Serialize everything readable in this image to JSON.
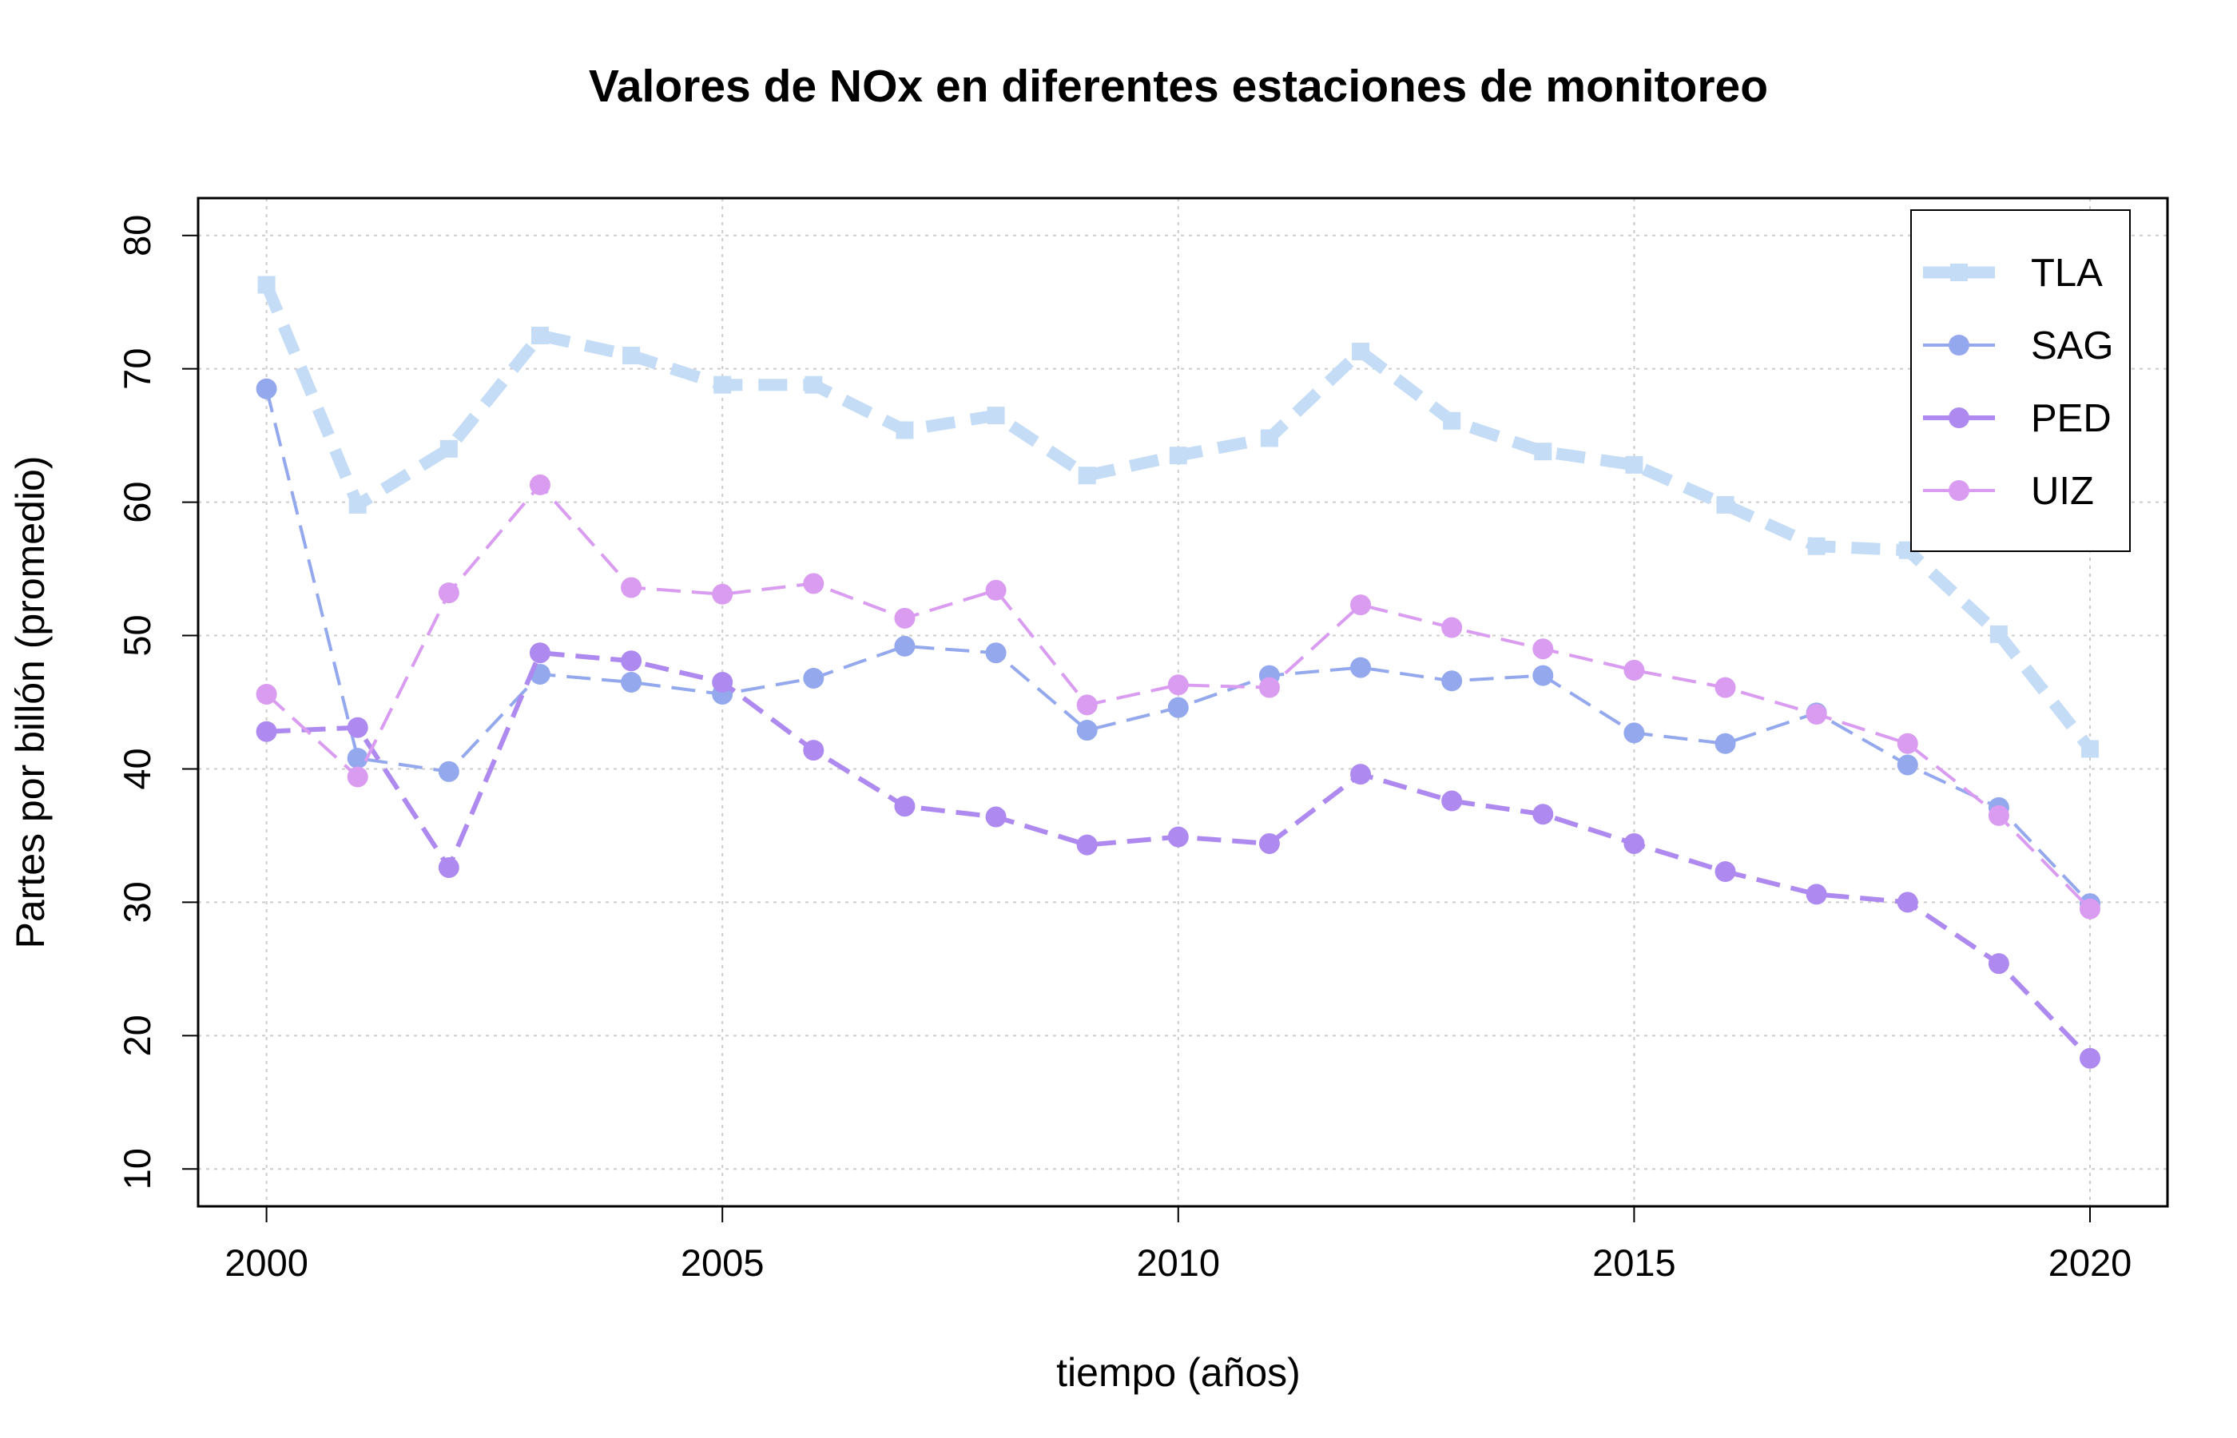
{
  "chart_data": {
    "type": "line",
    "title": "Valores de NOx en diferentes estaciones de monitoreo",
    "xlabel": "tiempo (años)",
    "ylabel": "Partes por billón (promedio)",
    "xlim": [
      1999.25,
      2020.85
    ],
    "ylim": [
      7.2,
      82.8
    ],
    "xticks": [
      2000,
      2005,
      2010,
      2015,
      2020
    ],
    "yticks": [
      10,
      20,
      30,
      40,
      50,
      60,
      70,
      80
    ],
    "grid": true,
    "grid_style": "dotted",
    "legend_position": "top-right",
    "x": [
      2000,
      2001,
      2002,
      2003,
      2004,
      2005,
      2006,
      2007,
      2008,
      2009,
      2010,
      2011,
      2012,
      2013,
      2014,
      2015,
      2016,
      2017,
      2018,
      2019,
      2020
    ],
    "series": [
      {
        "name": "TLA",
        "color": "#c4dcf6",
        "marker": "square",
        "line_style": "dashed",
        "line_weight": "thick",
        "values": [
          76.3,
          59.8,
          64.0,
          72.5,
          71.0,
          68.8,
          68.8,
          65.4,
          66.5,
          62.0,
          63.5,
          64.8,
          71.3,
          66.1,
          63.8,
          62.8,
          59.8,
          56.7,
          56.4,
          50.1,
          41.5
        ]
      },
      {
        "name": "SAG",
        "color": "#94a8ee",
        "marker": "circle",
        "line_style": "dashed",
        "line_weight": "normal",
        "values": [
          68.5,
          40.8,
          39.8,
          47.1,
          46.5,
          45.6,
          46.8,
          49.2,
          48.7,
          42.9,
          44.6,
          47.0,
          47.6,
          46.6,
          47.0,
          42.7,
          41.9,
          44.2,
          40.3,
          37.1,
          29.9
        ]
      },
      {
        "name": "PED",
        "color": "#ae8af0",
        "marker": "circle",
        "line_style": "dashed",
        "line_weight": "medium",
        "values": [
          42.8,
          43.1,
          32.6,
          48.7,
          48.1,
          46.5,
          41.4,
          37.2,
          36.4,
          34.3,
          34.9,
          34.4,
          39.6,
          37.6,
          36.6,
          34.4,
          32.3,
          30.6,
          30.0,
          25.4,
          18.3
        ]
      },
      {
        "name": "UIZ",
        "color": "#d99cf1",
        "marker": "circle",
        "line_style": "dashed",
        "line_weight": "normal",
        "values": [
          45.6,
          39.4,
          53.2,
          61.3,
          53.6,
          53.1,
          53.9,
          51.3,
          53.4,
          44.8,
          46.3,
          46.1,
          52.3,
          50.6,
          49.0,
          47.4,
          46.1,
          44.1,
          41.9,
          36.5,
          29.5
        ]
      }
    ]
  }
}
